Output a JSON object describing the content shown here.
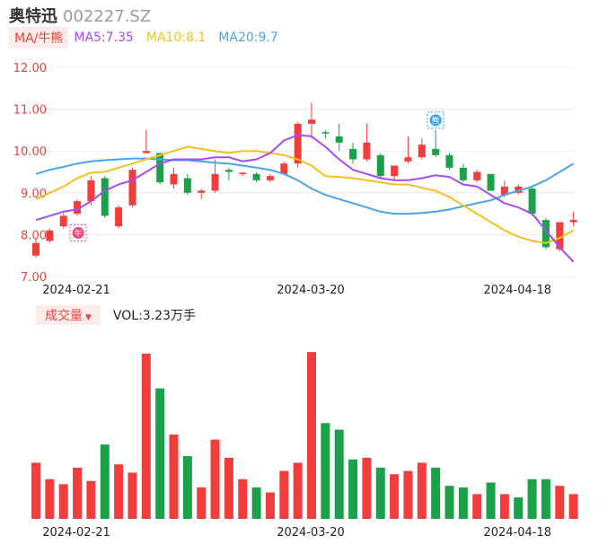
{
  "header": {
    "name": "奥特迅",
    "code": "002227.SZ"
  },
  "ma_legend": {
    "tag": "MA/牛熊",
    "ma5": "MA5:7.35",
    "ma10": "MA10:8.1",
    "ma20": "MA20:9.7"
  },
  "vol_legend": {
    "tag": "成交量",
    "caret": "▼",
    "vol": "VOL:3.23万手"
  },
  "colors": {
    "up": "#f23d3d",
    "down": "#1aa14a",
    "ma5": "#a64bf4",
    "ma10": "#f4c020",
    "ma20": "#4ba3ea",
    "bull_badge": "#f0457a",
    "bear_badge": "#2aa3ea"
  },
  "badges": [
    {
      "icon": "bull-icon",
      "label": "牛",
      "index": 3
    },
    {
      "icon": "bear-icon",
      "label": "熊",
      "index": 29
    }
  ],
  "chart_data": {
    "type": "candlestick",
    "ylim": [
      7.0,
      12.0
    ],
    "yticks": [
      "12.00",
      "11.00",
      "10.00",
      "9.00",
      "8.00",
      "7.00"
    ],
    "xticks": [
      {
        "label": "2024-02-21",
        "index": 3
      },
      {
        "label": "2024-03-20",
        "index": 20
      },
      {
        "label": "2024-04-18",
        "index": 35
      }
    ],
    "candles": [
      {
        "o": 7.5,
        "h": 7.9,
        "l": 7.45,
        "c": 7.8
      },
      {
        "o": 7.85,
        "h": 8.15,
        "l": 7.8,
        "c": 8.1
      },
      {
        "o": 8.2,
        "h": 8.5,
        "l": 8.15,
        "c": 8.45
      },
      {
        "o": 8.5,
        "h": 8.85,
        "l": 8.45,
        "c": 8.8
      },
      {
        "o": 8.8,
        "h": 9.4,
        "l": 8.7,
        "c": 9.3
      },
      {
        "o": 9.35,
        "h": 9.4,
        "l": 8.4,
        "c": 8.45
      },
      {
        "o": 8.2,
        "h": 8.7,
        "l": 8.15,
        "c": 8.65
      },
      {
        "o": 8.7,
        "h": 9.6,
        "l": 8.65,
        "c": 9.55
      },
      {
        "o": 9.95,
        "h": 10.5,
        "l": 9.95,
        "c": 10.0
      },
      {
        "o": 9.95,
        "h": 9.95,
        "l": 9.2,
        "c": 9.25
      },
      {
        "o": 9.2,
        "h": 9.6,
        "l": 9.1,
        "c": 9.45
      },
      {
        "o": 9.35,
        "h": 9.45,
        "l": 8.95,
        "c": 9.0
      },
      {
        "o": 9.0,
        "h": 9.1,
        "l": 8.85,
        "c": 9.05
      },
      {
        "o": 9.05,
        "h": 9.8,
        "l": 9.0,
        "c": 9.45
      },
      {
        "o": 9.55,
        "h": 9.6,
        "l": 9.3,
        "c": 9.5
      },
      {
        "o": 9.45,
        "h": 9.5,
        "l": 9.4,
        "c": 9.48
      },
      {
        "o": 9.45,
        "h": 9.5,
        "l": 9.25,
        "c": 9.3
      },
      {
        "o": 9.3,
        "h": 9.45,
        "l": 9.25,
        "c": 9.4
      },
      {
        "o": 9.45,
        "h": 9.75,
        "l": 9.45,
        "c": 9.7
      },
      {
        "o": 9.7,
        "h": 10.7,
        "l": 9.6,
        "c": 10.65
      },
      {
        "o": 10.65,
        "h": 11.15,
        "l": 10.3,
        "c": 10.75
      },
      {
        "o": 10.45,
        "h": 10.5,
        "l": 10.3,
        "c": 10.42
      },
      {
        "o": 10.35,
        "h": 10.65,
        "l": 10.0,
        "c": 10.2
      },
      {
        "o": 10.05,
        "h": 10.2,
        "l": 9.7,
        "c": 9.8
      },
      {
        "o": 9.8,
        "h": 10.65,
        "l": 9.75,
        "c": 10.2
      },
      {
        "o": 9.9,
        "h": 9.95,
        "l": 9.35,
        "c": 9.4
      },
      {
        "o": 9.4,
        "h": 9.65,
        "l": 9.3,
        "c": 9.65
      },
      {
        "o": 9.75,
        "h": 10.35,
        "l": 9.7,
        "c": 9.85
      },
      {
        "o": 9.85,
        "h": 10.3,
        "l": 9.8,
        "c": 10.15
      },
      {
        "o": 10.05,
        "h": 10.5,
        "l": 9.85,
        "c": 9.9
      },
      {
        "o": 9.9,
        "h": 9.95,
        "l": 9.55,
        "c": 9.6
      },
      {
        "o": 9.6,
        "h": 9.7,
        "l": 9.25,
        "c": 9.3
      },
      {
        "o": 9.3,
        "h": 9.55,
        "l": 9.25,
        "c": 9.5
      },
      {
        "o": 9.45,
        "h": 9.45,
        "l": 9.05,
        "c": 9.05
      },
      {
        "o": 8.95,
        "h": 9.3,
        "l": 8.9,
        "c": 9.15
      },
      {
        "o": 9.0,
        "h": 9.2,
        "l": 8.95,
        "c": 9.15
      },
      {
        "o": 9.1,
        "h": 9.15,
        "l": 8.45,
        "c": 8.5
      },
      {
        "o": 8.35,
        "h": 8.4,
        "l": 7.65,
        "c": 7.7
      },
      {
        "o": 7.65,
        "h": 8.3,
        "l": 7.6,
        "c": 8.3
      },
      {
        "o": 8.3,
        "h": 8.55,
        "l": 8.2,
        "c": 8.35
      }
    ],
    "ma5": [
      8.35,
      8.45,
      8.55,
      8.6,
      8.8,
      9.05,
      9.2,
      9.3,
      9.5,
      9.7,
      9.8,
      9.8,
      9.8,
      9.85,
      9.85,
      9.75,
      9.8,
      9.95,
      10.25,
      10.38,
      10.35,
      10.1,
      9.8,
      9.55,
      9.45,
      9.35,
      9.3,
      9.3,
      9.35,
      9.42,
      9.38,
      9.2,
      9.15,
      8.95,
      8.75,
      8.65,
      8.5,
      8.1,
      7.7,
      7.35
    ],
    "ma10": [
      8.85,
      9.0,
      9.15,
      9.35,
      9.48,
      9.5,
      9.6,
      9.7,
      9.8,
      9.9,
      10.0,
      10.1,
      10.05,
      10.0,
      9.95,
      10.0,
      10.0,
      9.95,
      9.9,
      9.8,
      9.65,
      9.4,
      9.38,
      9.35,
      9.3,
      9.25,
      9.2,
      9.2,
      9.12,
      9.05,
      8.9,
      8.7,
      8.5,
      8.3,
      8.1,
      7.95,
      7.85,
      7.8,
      7.92,
      8.1
    ],
    "ma20": [
      9.45,
      9.55,
      9.62,
      9.7,
      9.75,
      9.78,
      9.8,
      9.82,
      9.82,
      9.8,
      9.78,
      9.78,
      9.75,
      9.72,
      9.7,
      9.65,
      9.6,
      9.55,
      9.45,
      9.3,
      9.1,
      8.95,
      8.85,
      8.75,
      8.65,
      8.55,
      8.5,
      8.5,
      8.52,
      8.55,
      8.6,
      8.68,
      8.75,
      8.82,
      8.95,
      9.05,
      9.15,
      9.3,
      9.5,
      9.7
    ],
    "volume": {
      "ylim": [
        0,
        100
      ],
      "values": [
        34,
        24,
        21,
        31,
        23,
        45,
        33,
        28,
        100,
        79,
        51,
        38,
        19,
        48,
        37,
        24,
        19,
        16,
        29,
        34,
        101,
        58,
        54,
        36,
        37,
        31,
        27,
        29,
        34,
        31,
        20,
        19,
        15,
        22,
        15,
        13,
        24,
        24,
        20,
        15
      ],
      "up": [
        true,
        true,
        true,
        true,
        true,
        false,
        true,
        true,
        true,
        false,
        true,
        false,
        true,
        true,
        true,
        true,
        false,
        true,
        true,
        true,
        true,
        false,
        false,
        false,
        true,
        false,
        true,
        true,
        true,
        false,
        false,
        false,
        true,
        false,
        true,
        false,
        false,
        false,
        true,
        true
      ]
    }
  }
}
